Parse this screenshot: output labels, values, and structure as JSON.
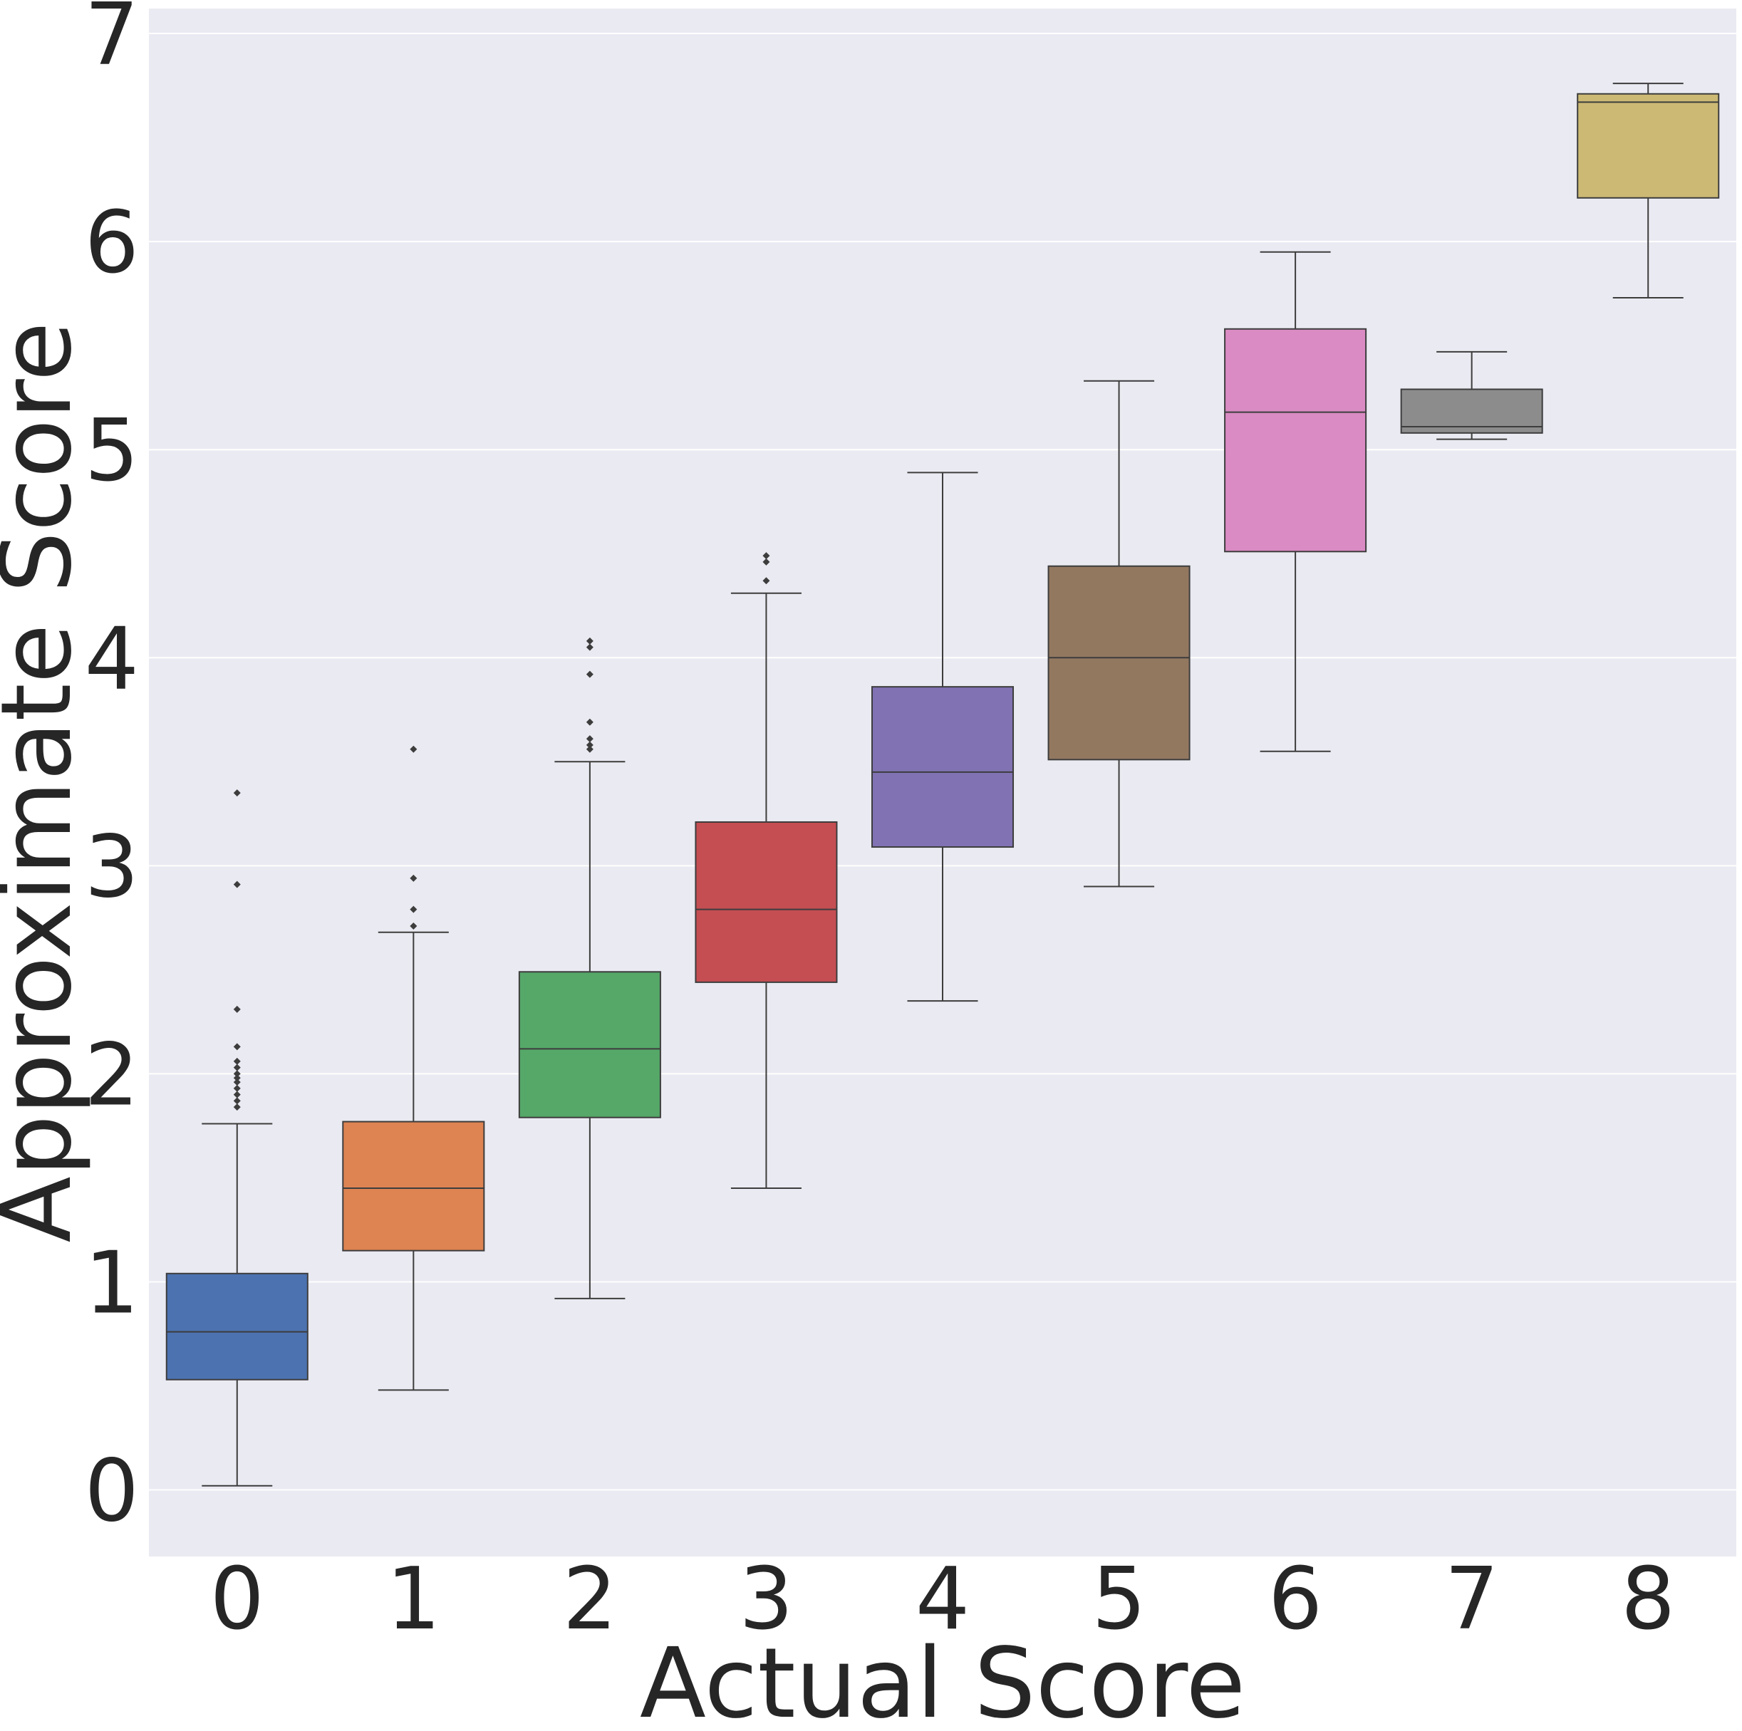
{
  "chart_data": {
    "type": "box",
    "xlabel": "Actual Score",
    "ylabel": "Approximate Score",
    "ylim": [
      -0.32,
      7.12
    ],
    "yticks": [
      "0",
      "1",
      "2",
      "3",
      "4",
      "5",
      "6",
      "7"
    ],
    "grid": true,
    "background_color": "#eaeaf2",
    "categories": [
      "0",
      "1",
      "2",
      "3",
      "4",
      "5",
      "6",
      "7",
      "8"
    ],
    "boxes": [
      {
        "category": "0",
        "color": "#4c72b0",
        "whisker_low": 0.02,
        "q1": 0.53,
        "median": 0.76,
        "q3": 1.04,
        "whisker_high": 1.76,
        "outliers": [
          1.84,
          1.87,
          1.9,
          1.93,
          1.96,
          1.98,
          2.0,
          2.03,
          2.06,
          2.13,
          2.31,
          2.91,
          3.35
        ]
      },
      {
        "category": "1",
        "color": "#dd8452",
        "whisker_low": 0.48,
        "q1": 1.15,
        "median": 1.45,
        "q3": 1.77,
        "whisker_high": 2.68,
        "outliers": [
          2.71,
          2.79,
          2.94,
          3.56
        ]
      },
      {
        "category": "2",
        "color": "#55a868",
        "whisker_low": 0.92,
        "q1": 1.79,
        "median": 2.12,
        "q3": 2.49,
        "whisker_high": 3.5,
        "outliers": [
          3.56,
          3.58,
          3.61,
          3.69,
          3.92,
          4.05,
          4.08
        ]
      },
      {
        "category": "3",
        "color": "#c44e52",
        "whisker_low": 1.45,
        "q1": 2.44,
        "median": 2.79,
        "q3": 3.21,
        "whisker_high": 4.31,
        "outliers": [
          4.37,
          4.46,
          4.49
        ]
      },
      {
        "category": "4",
        "color": "#8172b3",
        "whisker_low": 2.35,
        "q1": 3.09,
        "median": 3.45,
        "q3": 3.86,
        "whisker_high": 4.89,
        "outliers": []
      },
      {
        "category": "5",
        "color": "#937860",
        "whisker_low": 2.9,
        "q1": 3.51,
        "median": 4.0,
        "q3": 4.44,
        "whisker_high": 5.33,
        "outliers": []
      },
      {
        "category": "6",
        "color": "#da8bc3",
        "whisker_low": 3.55,
        "q1": 4.51,
        "median": 5.18,
        "q3": 5.58,
        "whisker_high": 5.95,
        "outliers": []
      },
      {
        "category": "7",
        "color": "#8c8c8c",
        "whisker_low": 5.05,
        "q1": 5.08,
        "median": 5.11,
        "q3": 5.29,
        "whisker_high": 5.47,
        "outliers": []
      },
      {
        "category": "8",
        "color": "#ccb974",
        "whisker_low": 5.73,
        "q1": 6.21,
        "median": 6.67,
        "q3": 6.71,
        "whisker_high": 6.76,
        "outliers": []
      }
    ]
  }
}
